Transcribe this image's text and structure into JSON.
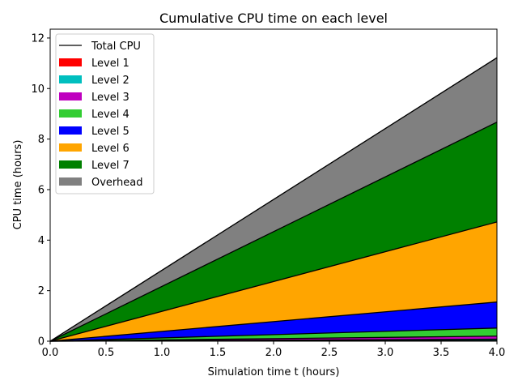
{
  "chart_data": {
    "type": "area",
    "title": "Cumulative CPU time on each level",
    "xlabel": "Simulation time t (hours)",
    "ylabel": "CPU time (hours)",
    "xlim": [
      0.0,
      4.0
    ],
    "ylim": [
      0.0,
      12.35
    ],
    "x_ticks": [
      "0.0",
      "0.5",
      "1.0",
      "1.5",
      "2.0",
      "2.5",
      "3.0",
      "3.5",
      "4.0"
    ],
    "y_ticks": [
      "0",
      "2",
      "4",
      "6",
      "8",
      "10",
      "12"
    ],
    "x_tick_values": [
      0,
      0.5,
      1,
      1.5,
      2,
      2.5,
      3,
      3.5,
      4
    ],
    "y_tick_values": [
      0,
      2,
      4,
      6,
      8,
      10,
      12
    ],
    "grid": false,
    "legend_position": "top-left",
    "x": [
      0.0,
      4.0
    ],
    "series": [
      {
        "name": "Level 1",
        "color": "#ff0000",
        "values": [
          0.0,
          0.03
        ]
      },
      {
        "name": "Level 2",
        "color": "#00bfbf",
        "values": [
          0.0,
          0.05
        ]
      },
      {
        "name": "Level 3",
        "color": "#bf00bf",
        "values": [
          0.0,
          0.12
        ]
      },
      {
        "name": "Level 4",
        "color": "#32cd32",
        "values": [
          0.0,
          0.32
        ]
      },
      {
        "name": "Level 5",
        "color": "#0000ff",
        "values": [
          0.0,
          1.03
        ]
      },
      {
        "name": "Level 6",
        "color": "#ffa500",
        "values": [
          0.0,
          3.17
        ]
      },
      {
        "name": "Level 7",
        "color": "#008000",
        "values": [
          0.0,
          3.95
        ]
      },
      {
        "name": "Overhead",
        "color": "#808080",
        "values": [
          0.0,
          2.55
        ]
      }
    ],
    "total": {
      "name": "Total CPU",
      "color": "#000000",
      "values": [
        0.0,
        11.22
      ]
    }
  }
}
